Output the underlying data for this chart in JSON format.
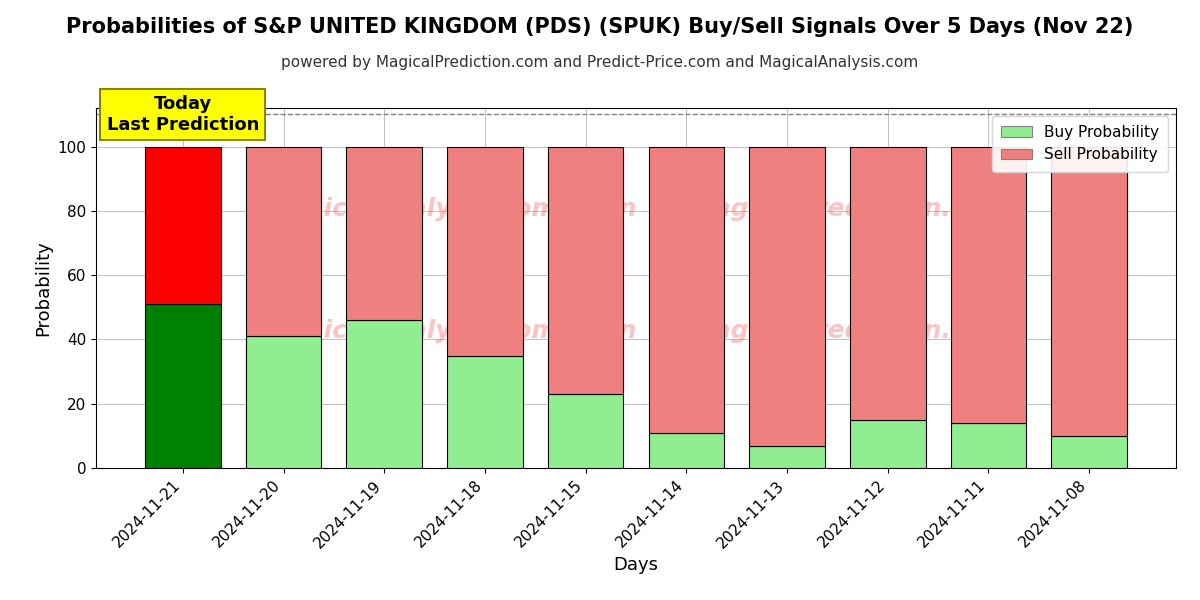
{
  "title": "Probabilities of S&P UNITED KINGDOM (PDS) (SPUK) Buy/Sell Signals Over 5 Days (Nov 22)",
  "subtitle": "powered by MagicalPrediction.com and Predict-Price.com and MagicalAnalysis.com",
  "xlabel": "Days",
  "ylabel": "Probability",
  "categories": [
    "2024-11-21",
    "2024-11-20",
    "2024-11-19",
    "2024-11-18",
    "2024-11-15",
    "2024-11-14",
    "2024-11-13",
    "2024-11-12",
    "2024-11-11",
    "2024-11-08"
  ],
  "buy_values": [
    51,
    41,
    46,
    35,
    23,
    11,
    7,
    15,
    14,
    10
  ],
  "sell_values": [
    49,
    59,
    54,
    65,
    77,
    89,
    93,
    85,
    86,
    90
  ],
  "today_bar_buy_color": "#008000",
  "today_bar_sell_color": "#ff0000",
  "other_bar_buy_color": "#90ee90",
  "other_bar_sell_color": "#f08080",
  "bar_edge_color": "#000000",
  "ylim": [
    0,
    112
  ],
  "yticks": [
    0,
    20,
    40,
    60,
    80,
    100
  ],
  "dashed_line_y": 110,
  "today_label_text": "Today\nLast Prediction",
  "today_label_bg": "#ffff00",
  "legend_buy_color": "#90ee90",
  "legend_sell_color": "#f08080",
  "title_fontsize": 15,
  "subtitle_fontsize": 11,
  "axis_label_fontsize": 13,
  "tick_fontsize": 11,
  "watermark_color": "#f08080",
  "watermark_alpha": 0.45
}
